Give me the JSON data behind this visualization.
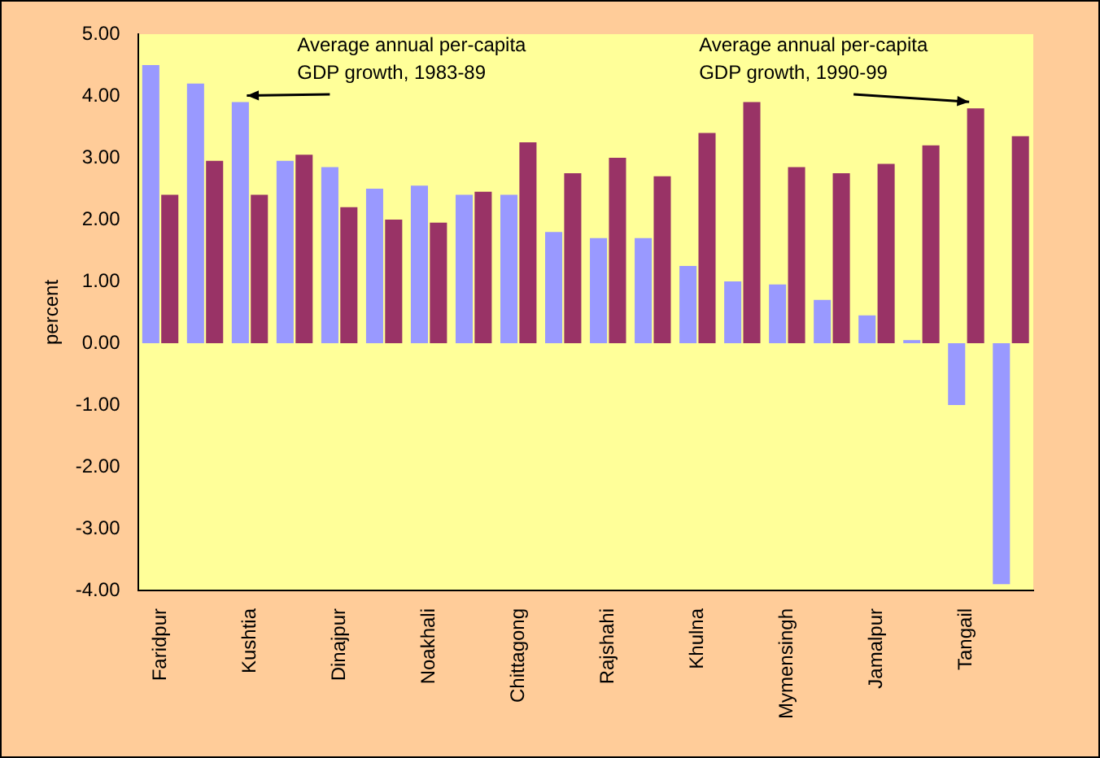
{
  "chart_data": {
    "type": "bar",
    "ylabel": "percent",
    "categories": [
      "Faridpur",
      null,
      "Kushtia",
      null,
      "Dinajpur",
      null,
      "Noakhali",
      null,
      "Chittagong",
      null,
      "Rajshahi",
      null,
      "Khulna",
      null,
      "Mymensingh",
      null,
      "Jamalpur",
      null,
      "Tangail",
      null
    ],
    "series": [
      {
        "name": "Average annual per-capita GDP growth, 1983-89",
        "color": "#9999ff",
        "values": [
          4.5,
          4.2,
          3.9,
          2.95,
          2.85,
          2.5,
          2.55,
          2.4,
          2.4,
          1.8,
          1.7,
          1.7,
          1.25,
          1.0,
          0.95,
          0.7,
          0.45,
          0.05,
          -1.0,
          -3.9
        ]
      },
      {
        "name": "Average annual per-capita GDP growth, 1990-99",
        "color": "#993366",
        "values": [
          2.4,
          2.95,
          2.4,
          3.05,
          2.2,
          2.0,
          1.95,
          2.45,
          3.25,
          2.75,
          3.0,
          2.7,
          3.4,
          3.9,
          2.85,
          2.75,
          2.9,
          3.2,
          3.8,
          3.35
        ]
      }
    ],
    "ylim": [
      -4,
      5
    ],
    "yticks": [
      {
        "value": -4,
        "label": "-4.00"
      },
      {
        "value": -3,
        "label": "-3.00"
      },
      {
        "value": -2,
        "label": "-2.00"
      },
      {
        "value": -1,
        "label": "-1.00"
      },
      {
        "value": 0,
        "label": "0.00"
      },
      {
        "value": 1,
        "label": "1.00"
      },
      {
        "value": 2,
        "label": "2.00"
      },
      {
        "value": 3,
        "label": "3.00"
      },
      {
        "value": 4,
        "label": "4.00"
      },
      {
        "value": 5,
        "label": "5.00"
      }
    ],
    "grid": false,
    "legend": false
  }
}
